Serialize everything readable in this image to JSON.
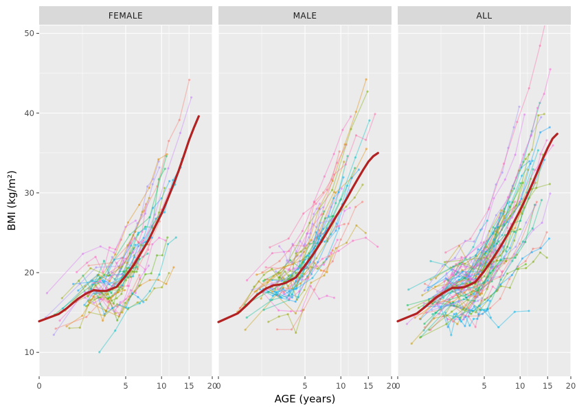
{
  "chart_data": {
    "type": "line",
    "facets": [
      "FEMALE",
      "MALE",
      "ALL"
    ],
    "xlabel": "AGE (years)",
    "ylabel": "BMI (kg/m²)",
    "x_scale": "sqrt",
    "xlim": [
      0,
      20
    ],
    "ylim": [
      7,
      51
    ],
    "x_ticks": [
      0,
      5,
      10,
      15,
      20
    ],
    "y_ticks": [
      10,
      20,
      30,
      40,
      50
    ],
    "grid": true,
    "trend_color": "#B22222",
    "series": [
      {
        "facet": "FEMALE",
        "kind": "trend",
        "x": [
          0,
          0.25,
          0.5,
          1,
          1.5,
          2,
          2.5,
          3,
          4,
          5,
          6,
          7,
          8,
          9,
          10,
          11,
          12,
          13,
          14,
          15,
          16,
          17
        ],
        "y": [
          13.9,
          14.8,
          15.5,
          16.7,
          17.4,
          17.8,
          17.7,
          17.7,
          18.2,
          19.6,
          21.0,
          22.6,
          24.1,
          25.8,
          27.4,
          29.2,
          31.0,
          32.8,
          34.7,
          36.6,
          38.2,
          39.6
        ]
      },
      {
        "facet": "MALE",
        "kind": "trend",
        "x": [
          0,
          0.25,
          0.5,
          1,
          1.5,
          2,
          2.5,
          3,
          4,
          5,
          6,
          7,
          8,
          9,
          10,
          11,
          12,
          13,
          14,
          15,
          16,
          17
        ],
        "y": [
          13.8,
          14.9,
          15.8,
          17.2,
          18.0,
          18.4,
          18.5,
          18.7,
          19.4,
          20.9,
          22.3,
          23.8,
          25.3,
          26.7,
          28.0,
          29.3,
          30.6,
          31.8,
          32.9,
          33.9,
          34.6,
          35.0
        ]
      },
      {
        "facet": "ALL",
        "kind": "trend",
        "x": [
          0,
          0.25,
          0.5,
          1,
          1.5,
          2,
          2.5,
          3,
          4,
          5,
          6,
          7,
          8,
          9,
          10,
          11,
          12,
          13,
          14,
          15,
          16,
          17
        ],
        "y": [
          13.9,
          14.9,
          15.7,
          16.9,
          17.6,
          18.1,
          18.1,
          18.2,
          18.8,
          20.2,
          21.7,
          23.2,
          24.7,
          26.3,
          27.8,
          29.4,
          31.0,
          32.6,
          34.2,
          35.6,
          36.8,
          37.4
        ]
      }
    ]
  }
}
